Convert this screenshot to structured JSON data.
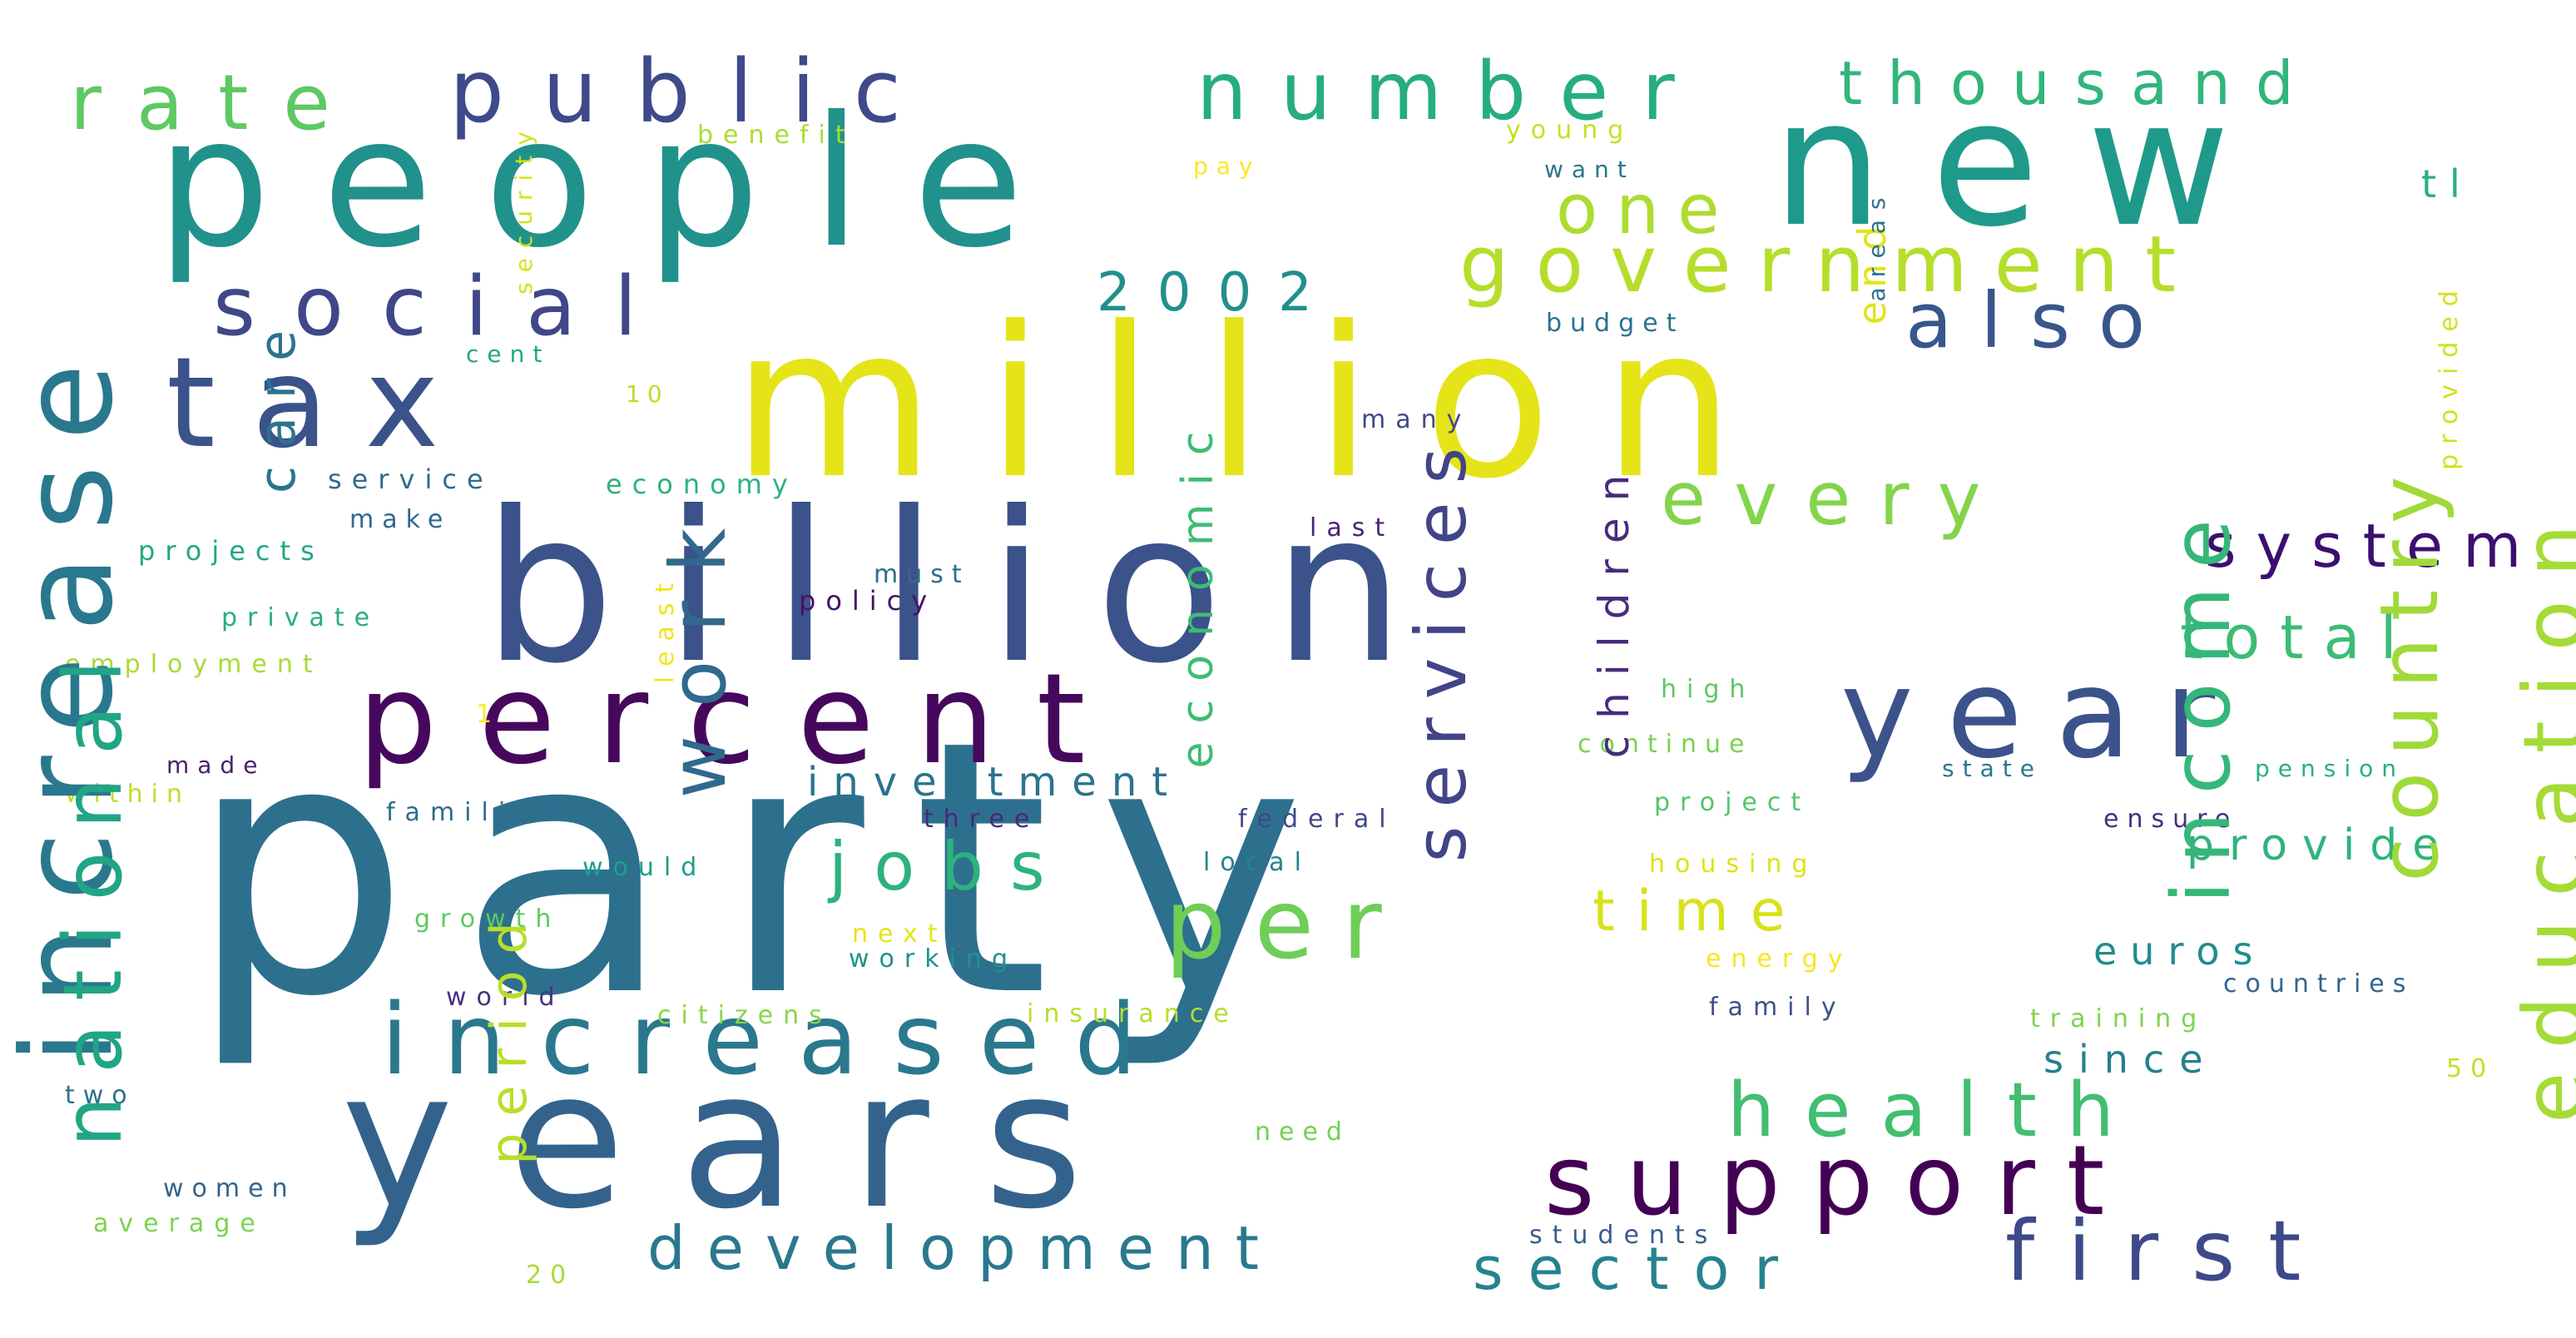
{
  "cloud": {
    "background": "#ffffff",
    "words": [
      {
        "text": "party",
        "color": "#2d708e"
      },
      {
        "text": "people",
        "color": "#21918c"
      },
      {
        "text": "new",
        "color": "#1f9a8a"
      },
      {
        "text": "million",
        "color": "#e5e419"
      },
      {
        "text": "billion",
        "color": "#3b528b"
      },
      {
        "text": "percent",
        "color": "#46085c"
      },
      {
        "text": "years",
        "color": "#33638d"
      },
      {
        "text": "tax",
        "color": "#3b528b"
      },
      {
        "text": "increased",
        "color": "#2a788e"
      },
      {
        "text": "increase",
        "color": "#2a788e"
      },
      {
        "text": "year",
        "color": "#3b528b"
      },
      {
        "text": "support",
        "color": "#440154"
      },
      {
        "text": "per",
        "color": "#6ece58"
      },
      {
        "text": "public",
        "color": "#3e4a89"
      },
      {
        "text": "number",
        "color": "#26ad81"
      },
      {
        "text": "thousand",
        "color": "#31b57b"
      },
      {
        "text": "rate",
        "color": "#5ec962"
      },
      {
        "text": "government",
        "color": "#b5de2b"
      },
      {
        "text": "social",
        "color": "#3f4788"
      },
      {
        "text": "national",
        "color": "#21a585"
      },
      {
        "text": "services",
        "color": "#414487"
      },
      {
        "text": "work",
        "color": "#31688e"
      },
      {
        "text": "every",
        "color": "#84d44b"
      },
      {
        "text": "income",
        "color": "#35b779"
      },
      {
        "text": "country",
        "color": "#a0da39"
      },
      {
        "text": "education",
        "color": "#a5db36"
      },
      {
        "text": "health",
        "color": "#42be71"
      },
      {
        "text": "development",
        "color": "#2a788e"
      },
      {
        "text": "sector",
        "color": "#25838e"
      },
      {
        "text": "first",
        "color": "#3e4989"
      },
      {
        "text": "jobs",
        "color": "#2db27d"
      },
      {
        "text": "time",
        "color": "#d8e219"
      },
      {
        "text": "period",
        "color": "#b8de29"
      },
      {
        "text": "also",
        "color": "#39568c"
      },
      {
        "text": "one",
        "color": "#addc30"
      },
      {
        "text": "2002",
        "color": "#21908d"
      },
      {
        "text": "system",
        "color": "#2c728e"
      },
      {
        "text": "care",
        "color": "#3b0f70"
      },
      {
        "text": "total",
        "color": "#3cbc75"
      },
      {
        "text": "provide",
        "color": "#2eb37c"
      },
      {
        "text": "investment",
        "color": "#2c738e"
      },
      {
        "text": "economic",
        "color": "#3dbc74"
      },
      {
        "text": "children",
        "color": "#472c7a"
      },
      {
        "text": "euros",
        "color": "#228c8d"
      },
      {
        "text": "since",
        "color": "#27808e"
      },
      {
        "text": "tl",
        "color": "#29af7f"
      },
      {
        "text": "end",
        "color": "#e2e418"
      },
      {
        "text": "benefit",
        "color": "#aadc32"
      },
      {
        "text": "young",
        "color": "#c8e020"
      },
      {
        "text": "pay",
        "color": "#fde725"
      },
      {
        "text": "want",
        "color": "#2a778e"
      },
      {
        "text": "budget",
        "color": "#2c718e"
      },
      {
        "text": "security",
        "color": "#d5e21a"
      },
      {
        "text": "areas",
        "color": "#2c728e"
      },
      {
        "text": "provided",
        "color": "#d2e21b"
      },
      {
        "text": "cent",
        "color": "#22a884"
      },
      {
        "text": "10",
        "color": "#bddf26"
      },
      {
        "text": "many",
        "color": "#3e4989"
      },
      {
        "text": "service",
        "color": "#2f6c8e"
      },
      {
        "text": "economy",
        "color": "#2db27d"
      },
      {
        "text": "make",
        "color": "#30698e"
      },
      {
        "text": "projects",
        "color": "#22a785"
      },
      {
        "text": "last",
        "color": "#482475"
      },
      {
        "text": "must",
        "color": "#2f6b8e"
      },
      {
        "text": "policy",
        "color": "#471063"
      },
      {
        "text": "private",
        "color": "#27ad81"
      },
      {
        "text": "least",
        "color": "#f1e51d"
      },
      {
        "text": "employment",
        "color": "#a8db34"
      },
      {
        "text": "high",
        "color": "#5cc863"
      },
      {
        "text": "continue",
        "color": "#7ad151"
      },
      {
        "text": "state",
        "color": "#2a788e"
      },
      {
        "text": "pension",
        "color": "#29af7f"
      },
      {
        "text": "made",
        "color": "#482173"
      },
      {
        "text": "within",
        "color": "#bddf26"
      },
      {
        "text": "families",
        "color": "#2f6b8e"
      },
      {
        "text": "three",
        "color": "#482878"
      },
      {
        "text": "federal",
        "color": "#3f4889"
      },
      {
        "text": "project",
        "color": "#52c569"
      },
      {
        "text": "ensure",
        "color": "#472f7d"
      },
      {
        "text": "would",
        "color": "#1f9e89"
      },
      {
        "text": "local",
        "color": "#25838e"
      },
      {
        "text": "housing",
        "color": "#dde318"
      },
      {
        "text": "growth",
        "color": "#5ec962"
      },
      {
        "text": "next",
        "color": "#e7e419"
      },
      {
        "text": "working",
        "color": "#21918c"
      },
      {
        "text": "energy",
        "color": "#f8e621"
      },
      {
        "text": "world",
        "color": "#46337e"
      },
      {
        "text": "citizens",
        "color": "#89d548"
      },
      {
        "text": "insurance",
        "color": "#b5de2b"
      },
      {
        "text": "family",
        "color": "#3b528b"
      },
      {
        "text": "countries",
        "color": "#32648e"
      },
      {
        "text": "training",
        "color": "#7fd34e"
      },
      {
        "text": "50",
        "color": "#c5e021"
      },
      {
        "text": "two",
        "color": "#2c728e"
      },
      {
        "text": "need",
        "color": "#75d054"
      },
      {
        "text": "women",
        "color": "#32648e"
      },
      {
        "text": "average",
        "color": "#7cd250"
      },
      {
        "text": "students",
        "color": "#365c8d"
      },
      {
        "text": "20",
        "color": "#a5db36"
      },
      {
        "text": "1",
        "color": "#fde725"
      }
    ]
  }
}
